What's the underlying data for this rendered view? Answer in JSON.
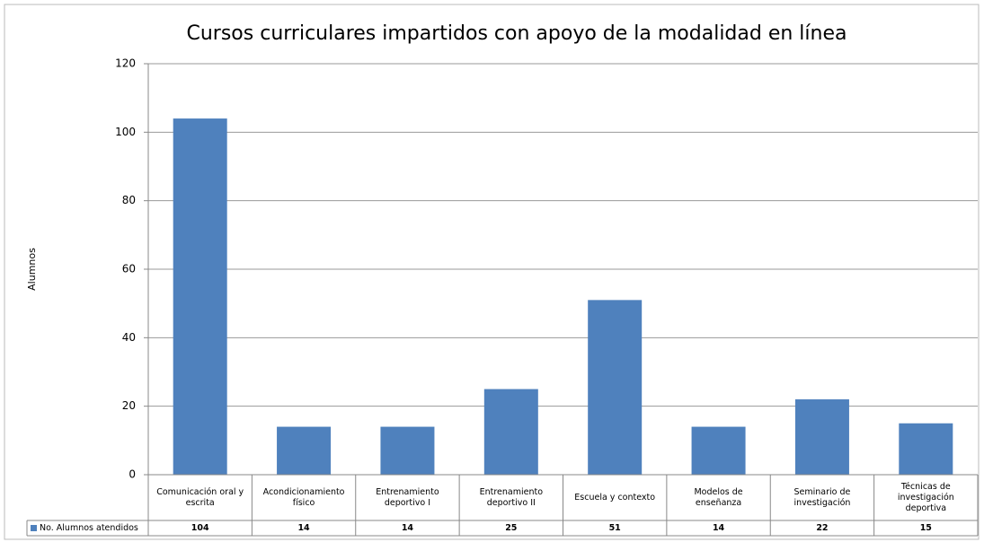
{
  "chart_data": {
    "type": "bar",
    "title": "Cursos curriculares impartidos con apoyo de la modalidad en línea",
    "y_label": "Alumnos",
    "categories": [
      "Comunicación oral y escrita",
      "Acondicionamiento físico",
      "Entrenamiento deportivo I",
      "Entrenamiento deportivo II",
      "Escuela y contexto",
      "Modelos de enseñanza",
      "Seminario de investigación",
      "Técnicas de investigación deportiva"
    ],
    "series": [
      {
        "name": "No. Alumnos atendidos",
        "color": "#4f81bd",
        "values": [
          104,
          14,
          14,
          25,
          51,
          14,
          22,
          15
        ]
      }
    ],
    "ylim": [
      0,
      120
    ],
    "yticks": [
      0,
      20,
      40,
      60,
      80,
      100,
      120
    ],
    "grid": true,
    "legend": "data-table"
  }
}
